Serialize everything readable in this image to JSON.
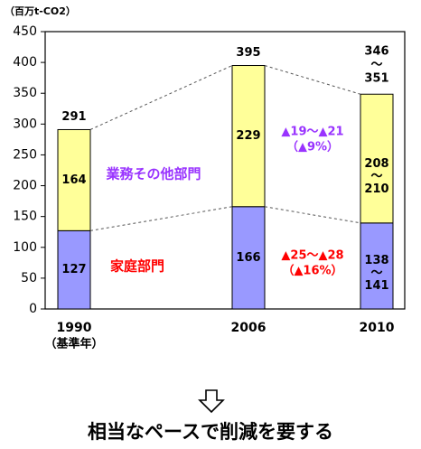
{
  "chart_data": {
    "type": "bar",
    "stacked": true,
    "unit": "（百万t-CO2）",
    "ylim": [
      0,
      450
    ],
    "yticks": [
      "0",
      "50",
      "100",
      "150",
      "200",
      "250",
      "300",
      "350",
      "400",
      "450"
    ],
    "grid": false,
    "categories": [
      {
        "label": "1990",
        "sublabel": "（基準年）"
      },
      {
        "label": "2006",
        "sublabel": ""
      },
      {
        "label": "2010",
        "sublabel": ""
      }
    ],
    "series": [
      {
        "name": "家庭部門",
        "color": "#9999ff",
        "label_color": "#ff0000",
        "values": [
          127,
          166,
          139.5
        ],
        "value_labels": [
          [
            "127"
          ],
          [
            "166"
          ],
          [
            "138",
            "～",
            "141"
          ]
        ]
      },
      {
        "name": "業務その他部門",
        "color": "#ffff99",
        "label_color": "#9933ff",
        "values": [
          164,
          229,
          209
        ],
        "value_labels": [
          [
            "164"
          ],
          [
            "229"
          ],
          [
            "208",
            "～",
            "210"
          ]
        ]
      }
    ],
    "totals": [
      {
        "value": 291,
        "lines": [
          "291"
        ]
      },
      {
        "value": 395,
        "lines": [
          "395"
        ]
      },
      {
        "value": 348.5,
        "lines": [
          "346",
          "～",
          "351"
        ]
      }
    ],
    "annotations": [
      {
        "text": [
          "▲19～▲21",
          "（▲9%）"
        ],
        "color": "#9933ff"
      },
      {
        "text": [
          "▲25～▲28",
          "（▲16%）"
        ],
        "color": "#ff0000"
      }
    ]
  },
  "arrow_icon": "down-arrow-icon",
  "caption": "相当なペースで削減を要する"
}
